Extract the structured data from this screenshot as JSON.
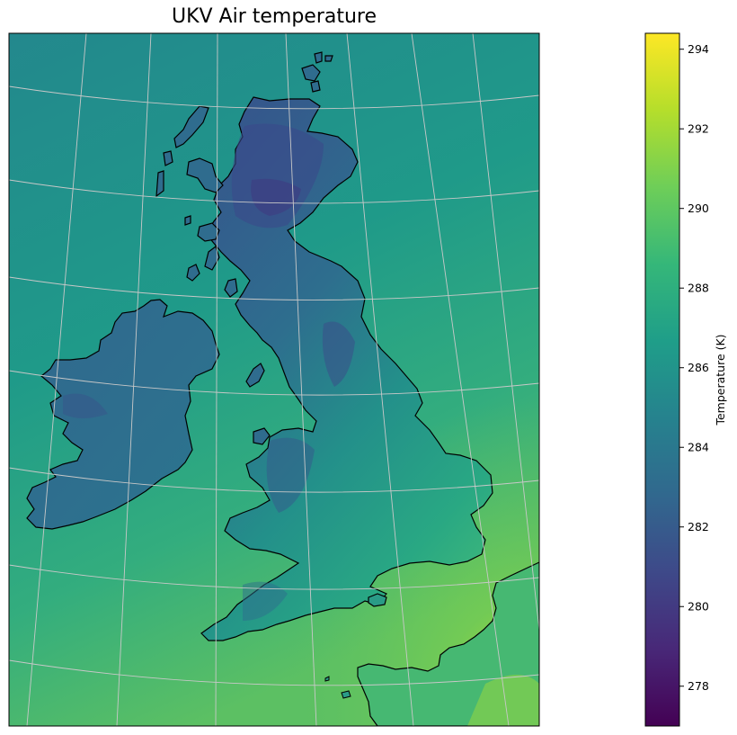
{
  "title": "UKV Air temperature",
  "colorbar": {
    "label": "Temperature (K)",
    "min": 277.0,
    "max": 294.4,
    "ticks": [
      278,
      280,
      282,
      284,
      286,
      288,
      290,
      292,
      294
    ],
    "colormap": "viridis",
    "stops": [
      "#440154",
      "#482878",
      "#3e4989",
      "#31688e",
      "#26828e",
      "#1f9e89",
      "#35b779",
      "#6ece58",
      "#b5de2b",
      "#fde725"
    ]
  },
  "map": {
    "projection": "lambert-conformal",
    "gridlines": true,
    "coastline_color": "#000000",
    "gridline_color": "#c8c8c8",
    "sea_color": "#2a8b8d",
    "land_color": "#2f6c8e",
    "highland_color": "#3b4a8a",
    "warm_land_color": "#3fb87a"
  }
}
